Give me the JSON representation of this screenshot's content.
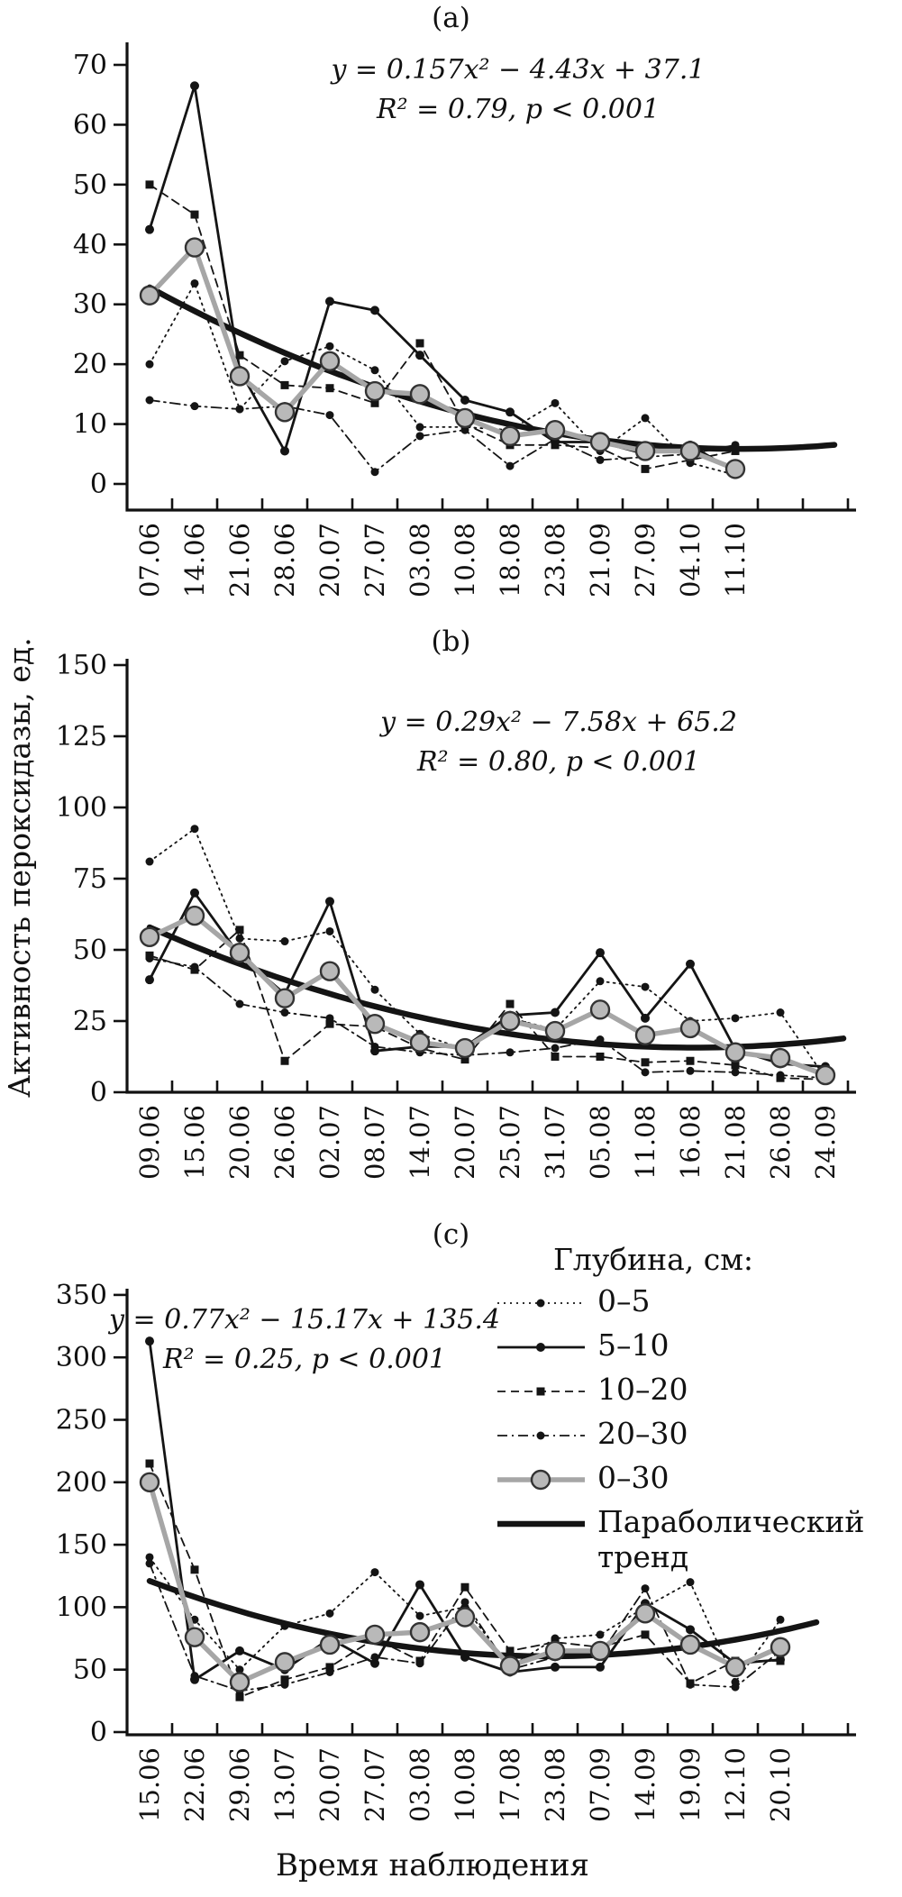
{
  "figure": {
    "y_axis_label": "Активность пероксидазы, ед.",
    "x_axis_label": "Время наблюдения",
    "colors": {
      "series_black": "#141414",
      "gray_line": "#a6a6a6",
      "gray_marker_fill": "#b9b9b9",
      "gray_marker_stroke": "#333333",
      "text": "#111111"
    },
    "legend": {
      "title": "Глубина, см:",
      "items": [
        {
          "label": "0–5",
          "style": "dotted-circle"
        },
        {
          "label": "5–10",
          "style": "solid-circle"
        },
        {
          "label": "10–20",
          "style": "dashed-square"
        },
        {
          "label": "20–30",
          "style": "dashdot-circle"
        },
        {
          "label": "0–30",
          "style": "gray-circle"
        },
        {
          "label": "Параболический тренд",
          "style": "trend"
        }
      ]
    }
  },
  "chart_data": [
    {
      "panel_label": "(a)",
      "type": "line",
      "equation": "y = 0.157x² − 4.43x + 37.1",
      "stats": "R² = 0.79, p < 0.001",
      "ylim": [
        0,
        70
      ],
      "yticks": [
        0,
        10,
        20,
        30,
        40,
        50,
        60,
        70
      ],
      "grid": false,
      "categories": [
        "07.06",
        "14.06",
        "21.06",
        "28.06",
        "20.07",
        "27.07",
        "03.08",
        "10.08",
        "18.08",
        "23.08",
        "21.09",
        "27.09",
        "04.10",
        "11.10"
      ],
      "series": [
        {
          "name": "0–5",
          "style": "dotted-circle",
          "values": [
            20,
            33.5,
            12.5,
            20.5,
            23,
            19,
            9.5,
            9.5,
            9,
            13.5,
            5.5,
            11,
            3.5,
            1.5
          ]
        },
        {
          "name": "5–10",
          "style": "solid-circle",
          "values": [
            42.5,
            66.5,
            19,
            5.5,
            30.5,
            29,
            21.5,
            14,
            12,
            7,
            7,
            5,
            6.5,
            2
          ]
        },
        {
          "name": "10–20",
          "style": "dashed-square",
          "values": [
            50,
            45,
            21.5,
            16.5,
            16,
            13.5,
            23.5,
            10,
            6.5,
            6.5,
            6,
            2.5,
            4,
            5.5
          ]
        },
        {
          "name": "20–30",
          "style": "dashdot-circle",
          "values": [
            14,
            13,
            12.5,
            13,
            11.5,
            2,
            8,
            9,
            3,
            7.5,
            4,
            4.5,
            5,
            6.5
          ]
        },
        {
          "name": "0–30",
          "style": "gray-circle",
          "values": [
            31.5,
            39.5,
            18,
            12,
            20.5,
            15.5,
            15,
            11,
            8,
            9,
            7,
            5.5,
            5.5,
            2.5
          ]
        },
        {
          "name": "Параболический тренд",
          "style": "trend",
          "trend_coefficients": {
            "a": 0.157,
            "b": -4.43,
            "c": 37.1
          },
          "extend_to": 16.2
        }
      ]
    },
    {
      "panel_label": "(b)",
      "type": "line",
      "equation": "y = 0.29x² − 7.58x + 65.2",
      "stats": "R² = 0.80, p < 0.001",
      "ylim": [
        0,
        150
      ],
      "yticks": [
        0,
        25,
        50,
        75,
        100,
        125,
        150
      ],
      "grid": false,
      "categories": [
        "09.06",
        "15.06",
        "20.06",
        "26.06",
        "02.07",
        "08.07",
        "14.07",
        "20.07",
        "25.07",
        "31.07",
        "05.08",
        "11.08",
        "16.08",
        "21.08",
        "26.08",
        "24.09"
      ],
      "series": [
        {
          "name": "0–5",
          "style": "dotted-circle",
          "values": [
            81,
            92.5,
            54,
            53,
            56.5,
            36,
            20.5,
            15,
            26,
            22,
            39,
            37,
            25,
            26,
            28,
            5
          ]
        },
        {
          "name": "5–10",
          "style": "solid-circle",
          "values": [
            39.5,
            70,
            48,
            34.5,
            67,
            14.5,
            16,
            16,
            27,
            28,
            49,
            26,
            45,
            15,
            10,
            9
          ]
        },
        {
          "name": "10–20",
          "style": "dashed-square",
          "values": [
            48,
            43,
            57,
            11,
            24,
            23,
            15.5,
            11.5,
            31,
            12.5,
            12.5,
            10.5,
            11,
            9.5,
            5,
            4.5
          ]
        },
        {
          "name": "20–30",
          "style": "dashdot-circle",
          "values": [
            47,
            44,
            31,
            28,
            26,
            16,
            14,
            13,
            14,
            15.5,
            18.5,
            7,
            7.5,
            7,
            6,
            5
          ]
        },
        {
          "name": "0–30",
          "style": "gray-circle",
          "values": [
            54.5,
            62,
            49,
            33,
            42.5,
            24,
            17.5,
            15.5,
            25,
            21.5,
            29,
            20,
            22.5,
            14,
            12,
            6
          ]
        },
        {
          "name": "Параболический тренд",
          "style": "trend",
          "trend_coefficients": {
            "a": 0.29,
            "b": -7.58,
            "c": 65.2
          },
          "extend_to": 16.4
        }
      ]
    },
    {
      "panel_label": "(c)",
      "type": "line",
      "equation": "y = 0.77x² − 15.17x + 135.4",
      "stats": "R² = 0.25, p < 0.001",
      "ylim": [
        0,
        350
      ],
      "yticks": [
        0,
        50,
        100,
        150,
        200,
        250,
        300,
        350
      ],
      "grid": false,
      "categories": [
        "15.06",
        "22.06",
        "29.06",
        "13.07",
        "20.07",
        "27.07",
        "03.08",
        "10.08",
        "17.08",
        "23.08",
        "07.09",
        "14.09",
        "19.09",
        "12.10",
        "20.10"
      ],
      "series": [
        {
          "name": "0–5",
          "style": "dotted-circle",
          "values": [
            140,
            90,
            50,
            85,
            95,
            128,
            93,
            100,
            52,
            75,
            78,
            100,
            120,
            40,
            90
          ]
        },
        {
          "name": "5–10",
          "style": "solid-circle",
          "values": [
            313,
            42,
            65,
            50,
            75,
            55,
            118,
            60,
            48,
            52,
            52,
            103,
            82,
            55,
            58
          ]
        },
        {
          "name": "10–20",
          "style": "dashed-square",
          "values": [
            215,
            130,
            28,
            42,
            52,
            75,
            57,
            116,
            65,
            72,
            68,
            78,
            39,
            57,
            57
          ]
        },
        {
          "name": "20–30",
          "style": "dashdot-circle",
          "values": [
            135,
            45,
            33,
            38,
            48,
            60,
            55,
            104,
            50,
            60,
            62,
            115,
            38,
            36,
            65
          ]
        },
        {
          "name": "0–30",
          "style": "gray-circle",
          "values": [
            200,
            76,
            40,
            56,
            70,
            78,
            80,
            92,
            53,
            65,
            65,
            95,
            70,
            52,
            68
          ]
        },
        {
          "name": "Параболический тренд",
          "style": "trend",
          "trend_coefficients": {
            "a": 0.77,
            "b": -15.17,
            "c": 135.4
          },
          "extend_to": 15.9
        }
      ]
    }
  ]
}
